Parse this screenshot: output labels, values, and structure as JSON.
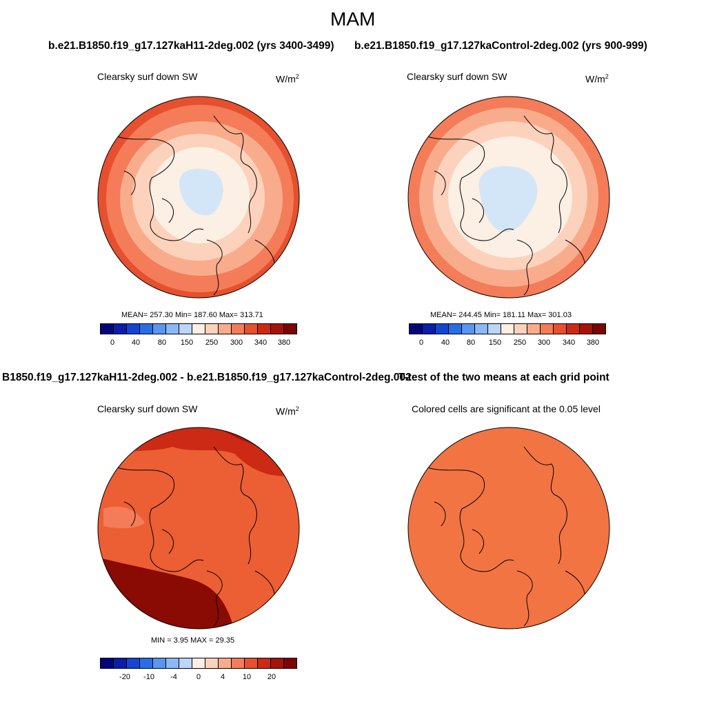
{
  "title": "MAM",
  "panels": [
    {
      "header": "b.e21.B1850.f19_g17.127kaH11-2deg.002 (yrs 3400-3499)",
      "left_label": "Clearsky surf down SW",
      "units": "W/m",
      "units_sup": "2",
      "stats": "MEAN= 257.30  Min= 187.60  Max= 313.71",
      "ticks": [
        "0",
        "40",
        "80",
        "150",
        "250",
        "300",
        "340",
        "380"
      ]
    },
    {
      "header": "b.e21.B1850.f19_g17.127kaControl-2deg.002 (yrs 900-999)",
      "left_label": "Clearsky surf down SW",
      "units": "W/m",
      "units_sup": "2",
      "stats": "MEAN= 244.45  Min= 181.11  Max= 301.03",
      "ticks": [
        "0",
        "40",
        "80",
        "150",
        "250",
        "300",
        "340",
        "380"
      ]
    },
    {
      "header": "B1850.f19_g17.127kaH11-2deg.002 - b.e21.B1850.f19_g17.127kaControl-2deg.002",
      "left_label": "Clearsky surf down SW",
      "units": "W/m",
      "units_sup": "2",
      "stats": "MIN =   3.95 MAX =  29.35",
      "ticks": [
        "-20",
        "-10",
        "-4",
        "0",
        "4",
        "10",
        "20"
      ]
    },
    {
      "header": "T-test of the two means at each grid point",
      "left_label": "Colored cells are significant at the 0.05 level"
    }
  ],
  "palette": [
    "#05057a",
    "#0a1ea8",
    "#1446d2",
    "#2a6ee6",
    "#5a96f0",
    "#8cb8f5",
    "#bcd6fa",
    "#fcefe4",
    "#fcd2bc",
    "#f9ac8c",
    "#f47c58",
    "#e6502e",
    "#cc2a14",
    "#a5140a",
    "#7a0502"
  ],
  "colors": {
    "sea_ice": "#d3e6f8",
    "diff_base": "#ec5e34",
    "diff_hi": "#8a0a04",
    "ttest": "#f27443"
  }
}
